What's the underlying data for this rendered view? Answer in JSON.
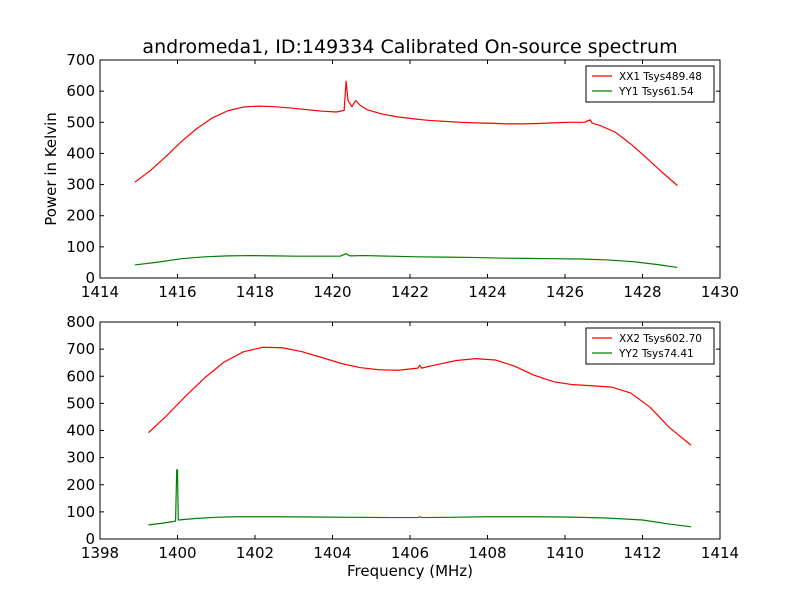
{
  "figure": {
    "title": "andromeda1, ID:149334 Calibrated On-source spectrum"
  },
  "chart_data": [
    {
      "type": "line",
      "title": "andromeda1, ID:149334 Calibrated On-source spectrum",
      "xlabel": "",
      "ylabel": "Power in Kelvin",
      "xlim": [
        1414,
        1430
      ],
      "ylim": [
        0,
        700
      ],
      "xticks": [
        1414,
        1416,
        1418,
        1420,
        1422,
        1424,
        1426,
        1428,
        1430
      ],
      "yticks": [
        0,
        100,
        200,
        300,
        400,
        500,
        600,
        700
      ],
      "legend_position": "top-right",
      "series": [
        {
          "name": "XX1 Tsys489.48",
          "color": "#ff0000",
          "points": [
            [
              1414.9,
              308
            ],
            [
              1415.3,
              345
            ],
            [
              1415.7,
              390
            ],
            [
              1416.1,
              438
            ],
            [
              1416.5,
              480
            ],
            [
              1416.9,
              514
            ],
            [
              1417.3,
              537
            ],
            [
              1417.7,
              549
            ],
            [
              1418.1,
              552
            ],
            [
              1418.5,
              550
            ],
            [
              1418.9,
              546
            ],
            [
              1419.3,
              541
            ],
            [
              1419.7,
              536
            ],
            [
              1420.1,
              533
            ],
            [
              1420.3,
              538
            ],
            [
              1420.35,
              632
            ],
            [
              1420.4,
              570
            ],
            [
              1420.5,
              550
            ],
            [
              1420.6,
              570
            ],
            [
              1420.7,
              556
            ],
            [
              1420.9,
              540
            ],
            [
              1421.3,
              526
            ],
            [
              1421.7,
              517
            ],
            [
              1422.1,
              511
            ],
            [
              1422.5,
              506
            ],
            [
              1422.9,
              503
            ],
            [
              1423.3,
              500
            ],
            [
              1423.7,
              498
            ],
            [
              1424.1,
              497
            ],
            [
              1424.5,
              495
            ],
            [
              1424.9,
              495
            ],
            [
              1425.3,
              496
            ],
            [
              1425.7,
              498
            ],
            [
              1426.1,
              500
            ],
            [
              1426.5,
              500
            ],
            [
              1426.65,
              508
            ],
            [
              1426.7,
              497
            ],
            [
              1426.9,
              490
            ],
            [
              1427.3,
              468
            ],
            [
              1427.7,
              430
            ],
            [
              1428.1,
              386
            ],
            [
              1428.5,
              340
            ],
            [
              1428.9,
              297
            ]
          ]
        },
        {
          "name": "YY1 Tsys61.54",
          "color": "#008000",
          "points": [
            [
              1414.9,
              42
            ],
            [
              1415.5,
              51
            ],
            [
              1416.1,
              62
            ],
            [
              1416.7,
              68
            ],
            [
              1417.3,
              71
            ],
            [
              1417.9,
              72
            ],
            [
              1418.5,
              71
            ],
            [
              1419.1,
              70
            ],
            [
              1419.7,
              70
            ],
            [
              1420.2,
              70
            ],
            [
              1420.35,
              78
            ],
            [
              1420.45,
              71
            ],
            [
              1420.8,
              72
            ],
            [
              1421.5,
              70
            ],
            [
              1422.2,
              68
            ],
            [
              1422.9,
              67
            ],
            [
              1423.6,
              66
            ],
            [
              1424.3,
              64
            ],
            [
              1425.0,
              63
            ],
            [
              1425.7,
              62
            ],
            [
              1426.4,
              61
            ],
            [
              1427.1,
              58
            ],
            [
              1427.8,
              52
            ],
            [
              1428.4,
              43
            ],
            [
              1428.9,
              34
            ]
          ]
        }
      ]
    },
    {
      "type": "line",
      "title": "",
      "xlabel": "Frequency (MHz)",
      "ylabel": "",
      "xlim": [
        1398,
        1414
      ],
      "ylim": [
        0,
        800
      ],
      "xticks": [
        1398,
        1400,
        1402,
        1404,
        1406,
        1408,
        1410,
        1412,
        1414
      ],
      "yticks": [
        0,
        100,
        200,
        300,
        400,
        500,
        600,
        700,
        800
      ],
      "legend_position": "top-right",
      "series": [
        {
          "name": "XX2 Tsys602.70",
          "color": "#ff0000",
          "points": [
            [
              1399.25,
              392
            ],
            [
              1399.7,
              452
            ],
            [
              1400.2,
              525
            ],
            [
              1400.7,
              594
            ],
            [
              1401.2,
              652
            ],
            [
              1401.7,
              690
            ],
            [
              1402.2,
              707
            ],
            [
              1402.7,
              705
            ],
            [
              1403.2,
              691
            ],
            [
              1403.7,
              670
            ],
            [
              1404.2,
              648
            ],
            [
              1404.7,
              632
            ],
            [
              1405.2,
              624
            ],
            [
              1405.7,
              622
            ],
            [
              1406.2,
              630
            ],
            [
              1406.25,
              640
            ],
            [
              1406.3,
              630
            ],
            [
              1406.7,
              643
            ],
            [
              1407.2,
              658
            ],
            [
              1407.7,
              665
            ],
            [
              1408.2,
              660
            ],
            [
              1408.7,
              637
            ],
            [
              1409.2,
              604
            ],
            [
              1409.7,
              580
            ],
            [
              1410.2,
              569
            ],
            [
              1410.7,
              565
            ],
            [
              1411.2,
              560
            ],
            [
              1411.7,
              538
            ],
            [
              1412.2,
              485
            ],
            [
              1412.7,
              410
            ],
            [
              1413.25,
              346
            ]
          ]
        },
        {
          "name": "YY2 Tsys74.41",
          "color": "#008000",
          "points": [
            [
              1399.25,
              52
            ],
            [
              1399.6,
              58
            ],
            [
              1399.95,
              66
            ],
            [
              1399.98,
              255
            ],
            [
              1400.0,
              255
            ],
            [
              1400.02,
              70
            ],
            [
              1400.5,
              76
            ],
            [
              1401.0,
              80
            ],
            [
              1401.5,
              82
            ],
            [
              1402.5,
              82
            ],
            [
              1403.5,
              81
            ],
            [
              1404.5,
              80
            ],
            [
              1405.5,
              79
            ],
            [
              1406.2,
              79
            ],
            [
              1406.25,
              82
            ],
            [
              1406.3,
              79
            ],
            [
              1407.0,
              80
            ],
            [
              1408.0,
              82
            ],
            [
              1409.0,
              82
            ],
            [
              1410.0,
              81
            ],
            [
              1411.0,
              78
            ],
            [
              1412.0,
              70
            ],
            [
              1412.7,
              55
            ],
            [
              1413.25,
              45
            ]
          ]
        }
      ]
    }
  ]
}
